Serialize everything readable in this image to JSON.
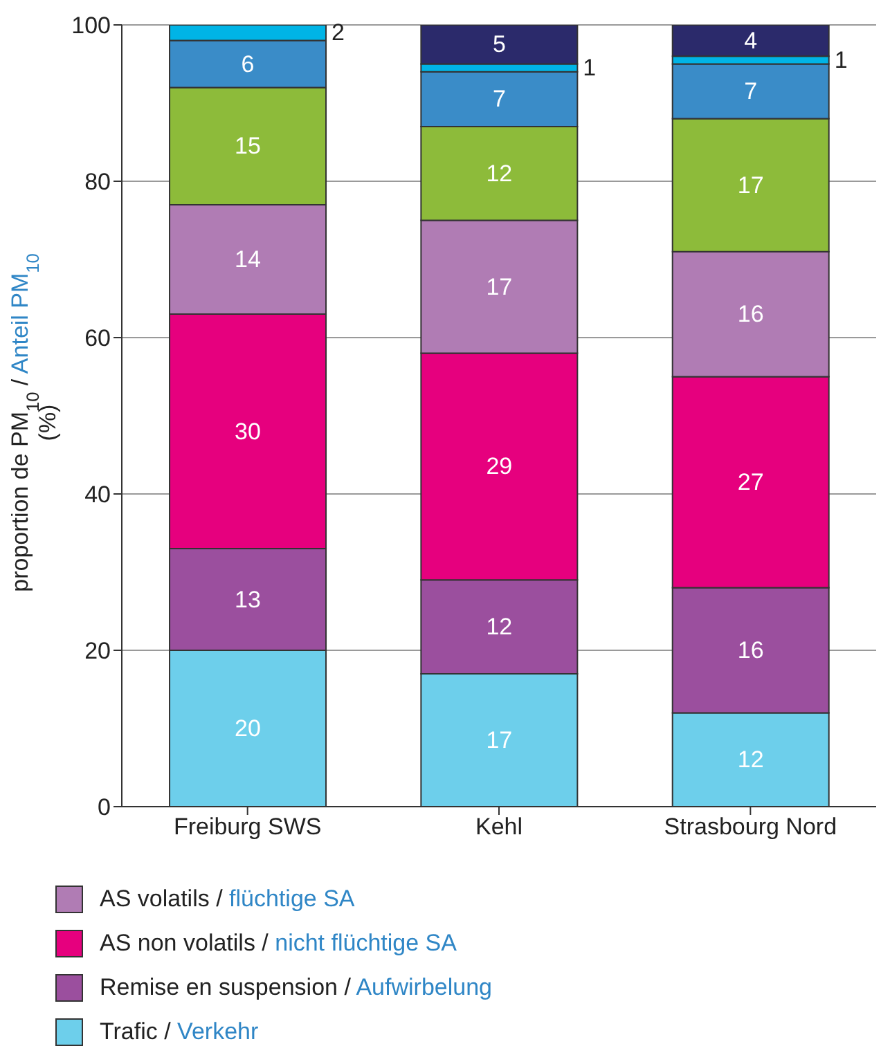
{
  "chart_data": {
    "type": "bar",
    "stacked": true,
    "categories": [
      "Freiburg SWS",
      "Kehl",
      "Strasbourg Nord"
    ],
    "series": [
      {
        "name": "Trafic / Verkehr",
        "color": "#6dcfeb",
        "values": [
          20,
          17,
          12
        ]
      },
      {
        "name": "Remise en suspension / Aufwirbelung",
        "color": "#9b4f9e",
        "values": [
          13,
          12,
          16
        ]
      },
      {
        "name": "AS non volatils / nicht flüchtige SA",
        "color": "#e6007e",
        "values": [
          30,
          29,
          27
        ]
      },
      {
        "name": "AS volatils / flüchtige SA",
        "color": "#b07cb4",
        "values": [
          14,
          17,
          16
        ]
      },
      {
        "color": "#8dbb3a",
        "values": [
          15,
          12,
          17
        ]
      },
      {
        "color": "#3a8cc8",
        "values": [
          6,
          7,
          7
        ]
      },
      {
        "color": "#00b4e6",
        "values": [
          2,
          1,
          1
        ]
      },
      {
        "color": "#2b2a6b",
        "values": [
          null,
          5,
          4
        ]
      }
    ],
    "ylabel": "proportion de PM$_{10}$ / Anteil PM$_{10}$ (%)",
    "ylim": [
      0,
      100
    ],
    "yticks": [
      0,
      20,
      40,
      60,
      80,
      100
    ],
    "grid": "y",
    "data_labels": true,
    "legend": "bottom"
  }
}
